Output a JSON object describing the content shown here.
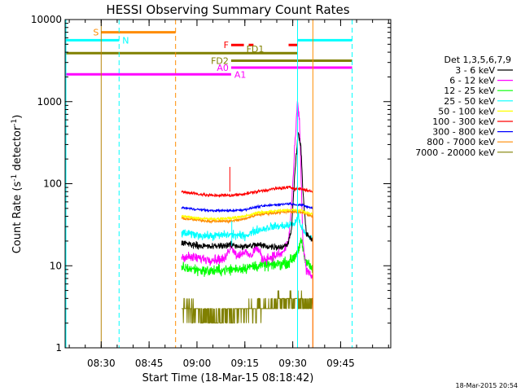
{
  "chart_data": {
    "type": "line",
    "title": "HESSI Observing Summary Count Rates",
    "xlabel": "Start Time (18-Mar-15 08:18:42)",
    "ylabel_main": "Count Rate (s",
    "ylabel_exp1": "-1",
    "ylabel_mid": " detector",
    "ylabel_exp2": "-1",
    "ylabel_end": ")",
    "y_scale": "log",
    "ylim": [
      1,
      10000
    ],
    "xlim_minutes": [
      0,
      102
    ],
    "x_ticks": [
      {
        "label": "08:30",
        "minutes": 11.3
      },
      {
        "label": "08:45",
        "minutes": 26.3
      },
      {
        "label": "09:00",
        "minutes": 41.3
      },
      {
        "label": "09:15",
        "minutes": 56.3
      },
      {
        "label": "09:30",
        "minutes": 71.3
      },
      {
        "label": "09:45",
        "minutes": 86.3
      }
    ],
    "y_ticks": [
      {
        "label": "1",
        "value": 1
      },
      {
        "label": "10",
        "value": 10
      },
      {
        "label": "100",
        "value": 100
      },
      {
        "label": "1000",
        "value": 1000
      },
      {
        "label": "10000",
        "value": 10000
      }
    ],
    "legend": {
      "title": "Det 1,3,5,6,7,9",
      "placement": "right",
      "entries": [
        {
          "label": "3 - 6 keV",
          "color": "#000000"
        },
        {
          "label": "6 - 12 keV",
          "color": "#ff00ff"
        },
        {
          "label": "12 - 25 keV",
          "color": "#00ff00"
        },
        {
          "label": "25 - 50 keV",
          "color": "#00ffff"
        },
        {
          "label": "50 - 100 keV",
          "color": "#ffff00"
        },
        {
          "label": "100 - 300 keV",
          "color": "#ff0000"
        },
        {
          "label": "300 - 800 keV",
          "color": "#0000ff"
        },
        {
          "label": "800 - 7000 keV",
          "color": "#ff8c00"
        },
        {
          "label": "7000 - 20000 keV",
          "color": "#808000"
        }
      ]
    },
    "flag_bars": [
      {
        "label": "S",
        "color": "#ff8c00",
        "y": 7000,
        "x0": 11.3,
        "x1": 34.6
      },
      {
        "label": "N",
        "color": "#00ffff",
        "y": 5600,
        "x0": 0,
        "x1": 16.9
      },
      {
        "label": "N",
        "color": "#00ffff",
        "y": 5600,
        "x0": 72.8,
        "x1": 89.9
      },
      {
        "label": "F",
        "color": "#ff0000",
        "y": 4900,
        "x0": 52,
        "x1": 56
      },
      {
        "label": "F",
        "color": "#ff0000",
        "y": 4900,
        "x0": 57.5,
        "x1": 59
      },
      {
        "label": "F",
        "color": "#ff0000",
        "y": 4900,
        "x0": 70,
        "x1": 72.8
      },
      {
        "label": "FD1",
        "color": "#808000",
        "y": 3900,
        "x0": 0,
        "x1": 72.8
      },
      {
        "label": "FD2",
        "color": "#808000",
        "y": 3150,
        "x0": 52,
        "x1": 89.9
      },
      {
        "label": "A0",
        "color": "#ff00ff",
        "y": 2600,
        "x0": 52,
        "x1": 89.9
      },
      {
        "label": "A1",
        "color": "#ff00ff",
        "y": 2150,
        "x0": 0,
        "x1": 52
      }
    ],
    "vertical_markers": [
      {
        "color": "#00ffff",
        "style": "solid",
        "x": 0
      },
      {
        "color": "#b8860b",
        "style": "solid",
        "x": 11.3
      },
      {
        "color": "#00ffff",
        "style": "dashed",
        "x": 16.9
      },
      {
        "color": "#ff8c00",
        "style": "dashed",
        "x": 34.6
      },
      {
        "color": "#00ffff",
        "style": "solid",
        "x": 72.8
      },
      {
        "color": "#ff8c00",
        "style": "solid",
        "x": 77.6
      },
      {
        "color": "#00ffff",
        "style": "dashed",
        "x": 89.9
      }
    ],
    "data_window_minutes": [
      36.5,
      77.6
    ],
    "series": [
      {
        "name": "7000 - 20000 keV",
        "color": "#808000",
        "level_points": [
          [
            36.5,
            3
          ],
          [
            45,
            2.5
          ],
          [
            54,
            2.6
          ],
          [
            63,
            3.2
          ],
          [
            72,
            3.8
          ],
          [
            77.6,
            3.2
          ]
        ],
        "noise": 0.35,
        "quantized": true
      },
      {
        "name": "12 - 25 keV",
        "color": "#00ff00",
        "level_points": [
          [
            36.5,
            9.5
          ],
          [
            45,
            8.6
          ],
          [
            52,
            9
          ],
          [
            56,
            9.4
          ],
          [
            60,
            10
          ],
          [
            65,
            10.2
          ],
          [
            70,
            11
          ],
          [
            72,
            13
          ],
          [
            73,
            16
          ],
          [
            74,
            20
          ],
          [
            75,
            12
          ],
          [
            77.6,
            9
          ]
        ],
        "noise": 0.2,
        "quantized": false
      },
      {
        "name": "6 - 12 keV",
        "color": "#ff00ff",
        "level_points": [
          [
            36.5,
            13
          ],
          [
            45,
            12
          ],
          [
            50,
            12
          ],
          [
            52,
            18
          ],
          [
            54,
            13
          ],
          [
            56,
            15
          ],
          [
            58,
            13
          ],
          [
            60,
            17
          ],
          [
            62,
            12
          ],
          [
            65,
            13
          ],
          [
            68,
            14
          ],
          [
            70,
            20
          ],
          [
            71,
            60
          ],
          [
            72,
            300
          ],
          [
            72.8,
            1000
          ],
          [
            73.5,
            500
          ],
          [
            74,
            90
          ],
          [
            74.5,
            20
          ],
          [
            75.5,
            9
          ],
          [
            77.6,
            7
          ]
        ],
        "noise": 0.18,
        "quantized": false
      },
      {
        "name": "25 - 50 keV",
        "color": "#00ffff",
        "level_points": [
          [
            36.5,
            25
          ],
          [
            45,
            23
          ],
          [
            52,
            24
          ],
          [
            56,
            23
          ],
          [
            60,
            27
          ],
          [
            65,
            30
          ],
          [
            70,
            31
          ],
          [
            72,
            33
          ],
          [
            73,
            40
          ],
          [
            74,
            30
          ],
          [
            75,
            25
          ],
          [
            77.6,
            21
          ]
        ],
        "noise": 0.15,
        "quantized": false
      },
      {
        "name": "3 - 6 keV",
        "color": "#000000",
        "level_points": [
          [
            36.5,
            19
          ],
          [
            45,
            17
          ],
          [
            52,
            18
          ],
          [
            56,
            17
          ],
          [
            60,
            18
          ],
          [
            65,
            17
          ],
          [
            68,
            17
          ],
          [
            70,
            19
          ],
          [
            71,
            30
          ],
          [
            72,
            150
          ],
          [
            73,
            420
          ],
          [
            73.8,
            300
          ],
          [
            74.5,
            80
          ],
          [
            75.5,
            25
          ],
          [
            77.6,
            20
          ]
        ],
        "noise": 0.12,
        "quantized": false
      },
      {
        "name": "800 - 7000 keV",
        "color": "#ff8c00",
        "level_points": [
          [
            36.5,
            38
          ],
          [
            45,
            35
          ],
          [
            52,
            35
          ],
          [
            56,
            37
          ],
          [
            60,
            42
          ],
          [
            65,
            44
          ],
          [
            70,
            46
          ],
          [
            74,
            45
          ],
          [
            77.6,
            40
          ]
        ],
        "noise": 0.06,
        "quantized": false
      },
      {
        "name": "50 - 100 keV",
        "color": "#ffff00",
        "level_points": [
          [
            36.5,
            40
          ],
          [
            45,
            37
          ],
          [
            52,
            38
          ],
          [
            56,
            40
          ],
          [
            60,
            44
          ],
          [
            65,
            46
          ],
          [
            70,
            48
          ],
          [
            74,
            47
          ],
          [
            77.6,
            42
          ]
        ],
        "noise": 0.05,
        "quantized": false
      },
      {
        "name": "300 - 800 keV",
        "color": "#0000ff",
        "level_points": [
          [
            36.5,
            51
          ],
          [
            45,
            47
          ],
          [
            52,
            47
          ],
          [
            56,
            48
          ],
          [
            60,
            52
          ],
          [
            65,
            55
          ],
          [
            70,
            57
          ],
          [
            74,
            55
          ],
          [
            77.6,
            50
          ]
        ],
        "noise": 0.04,
        "quantized": false
      },
      {
        "name": "100 - 300 keV",
        "color": "#ff0000",
        "level_points": [
          [
            36.5,
            80
          ],
          [
            45,
            72
          ],
          [
            52,
            72
          ],
          [
            56,
            75
          ],
          [
            60,
            80
          ],
          [
            65,
            86
          ],
          [
            70,
            90
          ],
          [
            74,
            86
          ],
          [
            77.6,
            80
          ]
        ],
        "noise": 0.06,
        "quantized": false
      }
    ],
    "spikes": [
      {
        "color": "#ff0000",
        "x": 51.6,
        "peak": 160
      },
      {
        "color": "#00ffff",
        "x": 52.2,
        "peak": 35
      }
    ]
  },
  "footer": {
    "timestamp": "18-Mar-2015 20:54"
  }
}
